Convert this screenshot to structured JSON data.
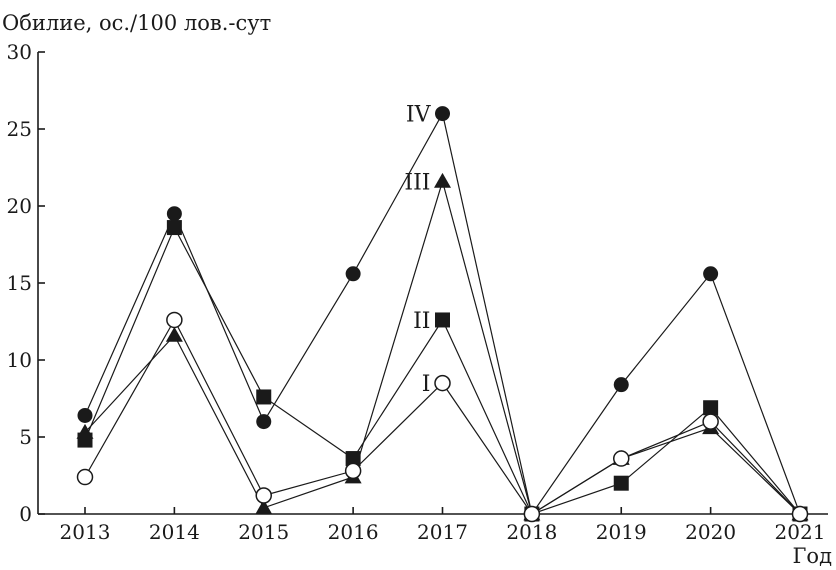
{
  "chart_data": {
    "type": "line",
    "title": "",
    "ylabel": "Обилие, ос./100 лов.-сут",
    "xlabel": "Год",
    "ylim": [
      0,
      30
    ],
    "yticks": [
      0,
      5,
      10,
      15,
      20,
      25,
      30
    ],
    "categories": [
      "2013",
      "2014",
      "2015",
      "2016",
      "2017",
      "2018",
      "2019",
      "2020",
      "2021"
    ],
    "series": [
      {
        "name": "IV",
        "marker": "circle-filled",
        "values": [
          6.4,
          19.5,
          6.0,
          15.6,
          26.0,
          0.0,
          8.4,
          15.6,
          0.0
        ]
      },
      {
        "name": "III",
        "marker": "triangle-filled",
        "values": [
          5.3,
          11.6,
          0.4,
          2.4,
          21.6,
          0.0,
          3.6,
          5.6,
          0.0
        ]
      },
      {
        "name": "II",
        "marker": "square-filled",
        "values": [
          4.8,
          18.6,
          7.6,
          3.6,
          12.6,
          0.0,
          2.0,
          6.9,
          0.0
        ]
      },
      {
        "name": "I",
        "marker": "circle-open",
        "values": [
          2.4,
          12.6,
          1.2,
          2.8,
          8.5,
          0.0,
          3.6,
          6.0,
          0.0
        ]
      }
    ],
    "grid": false,
    "legend": "inline labels next to 2017 points"
  }
}
